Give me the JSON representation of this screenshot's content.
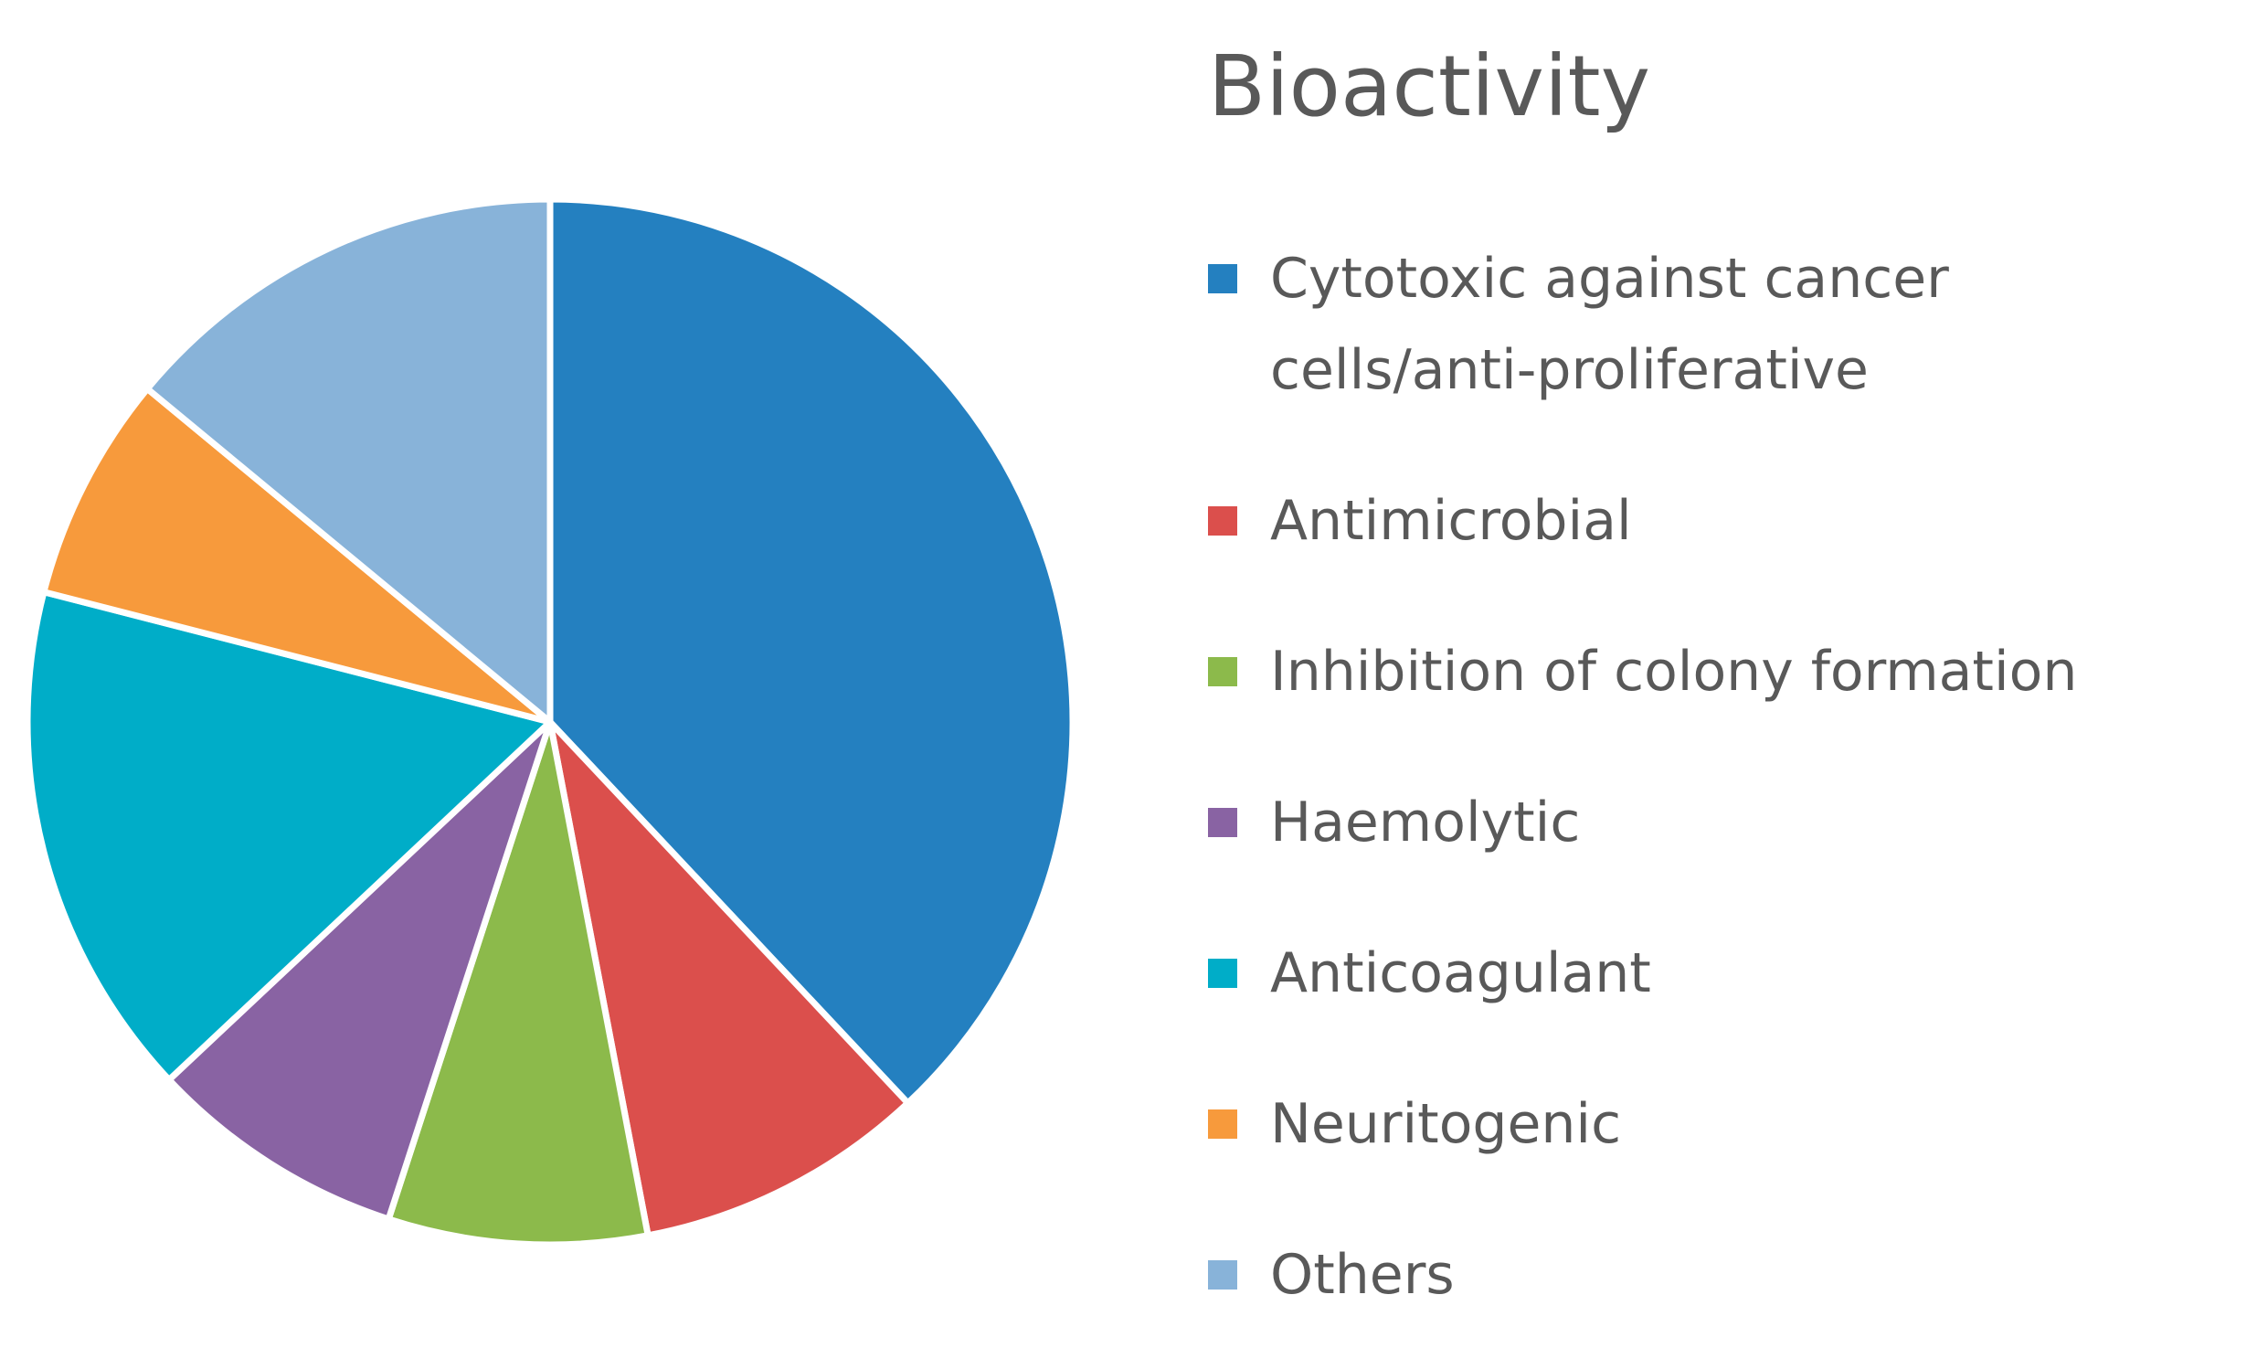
{
  "chart_data": {
    "type": "pie",
    "title": "Bioactivity",
    "categories": [
      "Cytotoxic against cancer cells/anti-proliferative",
      "Antimicrobial",
      "Inhibition of colony formation",
      "Haemolytic",
      "Anticoagulant",
      "Neuritogenic",
      "Others"
    ],
    "values": [
      38,
      9,
      8,
      8,
      16,
      7,
      14
    ],
    "colors": [
      "#2480c0",
      "#db4f4c",
      "#8cba4b",
      "#8963a3",
      "#00adc8",
      "#f79a3c",
      "#88b3d9"
    ]
  }
}
